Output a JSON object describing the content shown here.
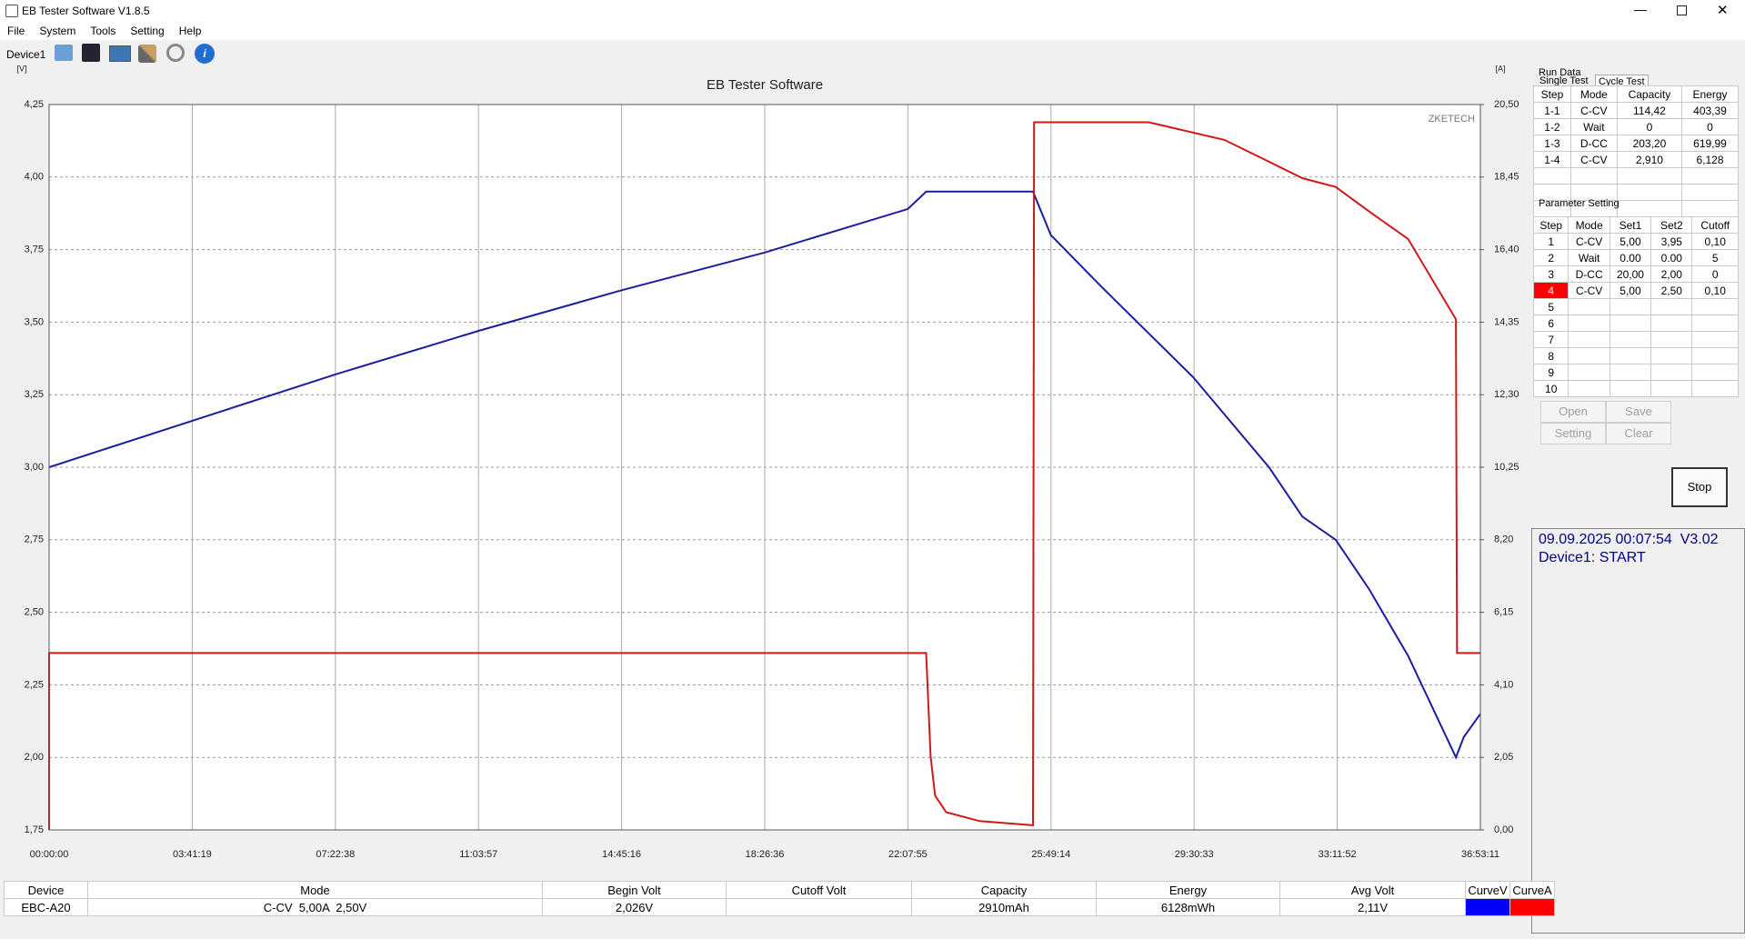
{
  "window": {
    "title": "EB Tester Software V1.8.5"
  },
  "menu": [
    "File",
    "System",
    "Tools",
    "Setting",
    "Help"
  ],
  "toolbar": {
    "device": "Device1"
  },
  "chart_data": {
    "type": "line",
    "title": "EB Tester Software",
    "annotation": "ZKETECH",
    "y_label": "[V]",
    "y2_label": "[A]",
    "grid": true,
    "xlim": [
      0,
      132791
    ],
    "xticks": [
      {
        "value": 0,
        "label": "00:00:00"
      },
      {
        "value": 13279,
        "label": "03:41:19"
      },
      {
        "value": 26558,
        "label": "07:22:38"
      },
      {
        "value": 39837,
        "label": "11:03:57"
      },
      {
        "value": 53116,
        "label": "14:45:16"
      },
      {
        "value": 66396,
        "label": "18:26:36"
      },
      {
        "value": 79675,
        "label": "22:07:55"
      },
      {
        "value": 92954,
        "label": "25:49:14"
      },
      {
        "value": 106233,
        "label": "29:30:33"
      },
      {
        "value": 119512,
        "label": "33:11:52"
      },
      {
        "value": 132791,
        "label": "36:53:11"
      }
    ],
    "ylim": [
      1.75,
      4.25
    ],
    "yticks": [
      {
        "value": 1.75,
        "label": "1,75"
      },
      {
        "value": 2,
        "label": "2,00"
      },
      {
        "value": 2.25,
        "label": "2,25"
      },
      {
        "value": 2.5,
        "label": "2,50"
      },
      {
        "value": 2.75,
        "label": "2,75"
      },
      {
        "value": 3,
        "label": "3,00"
      },
      {
        "value": 3.25,
        "label": "3,25"
      },
      {
        "value": 3.5,
        "label": "3,50"
      },
      {
        "value": 3.75,
        "label": "3,75"
      },
      {
        "value": 4,
        "label": "4,00"
      },
      {
        "value": 4.25,
        "label": "4,25"
      }
    ],
    "y2lim": [
      0,
      20.5
    ],
    "y2ticks": [
      {
        "value": 0,
        "label": "0,00"
      },
      {
        "value": 2.05,
        "label": "2,05"
      },
      {
        "value": 4.1,
        "label": "4,10"
      },
      {
        "value": 6.15,
        "label": "6,15"
      },
      {
        "value": 8.2,
        "label": "8,20"
      },
      {
        "value": 10.25,
        "label": "10,25"
      },
      {
        "value": 12.3,
        "label": "12,30"
      },
      {
        "value": 14.35,
        "label": "14,35"
      },
      {
        "value": 16.4,
        "label": "16,40"
      },
      {
        "value": 18.45,
        "label": "18,45"
      },
      {
        "value": 20.5,
        "label": "20,50"
      }
    ],
    "series": [
      {
        "name": "CurveV",
        "color": "#0000ff",
        "line_color": "#1c1ca0",
        "x": [
          0,
          13279,
          26558,
          39837,
          53116,
          66396,
          79675,
          81370,
          91282,
          92934,
          97684,
          106151,
          113173,
          116271,
          119369,
          122467,
          126081,
          130522,
          131245,
          132791
        ],
        "values": [
          3.0,
          3.16,
          3.32,
          3.47,
          3.61,
          3.74,
          3.89,
          3.95,
          3.95,
          3.8,
          3.62,
          3.31,
          3.0,
          2.83,
          2.75,
          2.58,
          2.35,
          2.0,
          2.07,
          2.15
        ]
      },
      {
        "name": "CurveA",
        "color": "#ff0000",
        "line_color": "#d01818",
        "axis": "y2",
        "x": [
          0,
          0,
          81370,
          81783,
          82196,
          83229,
          86327,
          91282,
          91385,
          102022,
          109044,
          112658,
          116271,
          119369,
          122467,
          126081,
          130522,
          130626,
          132791
        ],
        "values": [
          0,
          5.0,
          5.0,
          2.08,
          0.97,
          0.5,
          0.25,
          0.13,
          20.0,
          20.0,
          19.5,
          18.96,
          18.42,
          18.17,
          17.48,
          16.7,
          14.43,
          5.0,
          5.0
        ]
      }
    ]
  },
  "tabs": [
    "Single Test",
    "Cycle Test"
  ],
  "run_data": {
    "title": "Run Data",
    "columns": [
      "Step",
      "Mode",
      "Capacity",
      "Energy"
    ],
    "rows": [
      [
        "1-1",
        "C-CV",
        "114,42",
        "403,39"
      ],
      [
        "1-2",
        "Wait",
        "0",
        "0"
      ],
      [
        "1-3",
        "D-CC",
        "203,20",
        "619,99"
      ],
      [
        "1-4",
        "C-CV",
        "2,910",
        "6,128"
      ]
    ]
  },
  "parameter_setting": {
    "title": "Parameter Setting",
    "columns": [
      "Step",
      "Mode",
      "Set1",
      "Set2",
      "Cutoff"
    ],
    "active_row": 3,
    "rows": [
      [
        "1",
        "C-CV",
        "5,00",
        "3,95",
        "0,10"
      ],
      [
        "2",
        "Wait",
        "0.00",
        "0.00",
        "5"
      ],
      [
        "3",
        "D-CC",
        "20,00",
        "2,00",
        "0"
      ],
      [
        "4",
        "C-CV",
        "5,00",
        "2,50",
        "0,10"
      ],
      [
        "5"
      ],
      [
        "6"
      ],
      [
        "7"
      ],
      [
        "8"
      ],
      [
        "9"
      ],
      [
        "10"
      ]
    ]
  },
  "buttons": [
    "Open",
    "Save",
    "Setting",
    "Clear",
    "Stop"
  ],
  "status": [
    "09.09.2025 00:07:54  V3.02",
    "Device1: START"
  ],
  "summary": {
    "columns": [
      "Device",
      "Mode",
      "Begin Volt",
      "Cutoff Volt",
      "Capacity",
      "Energy",
      "Avg Volt"
    ],
    "row": [
      "EBC-A20",
      "C-CV  5,00A  2,50V",
      "2,026V",
      null,
      "2910mAh",
      "6128mWh",
      "2,11V"
    ]
  }
}
